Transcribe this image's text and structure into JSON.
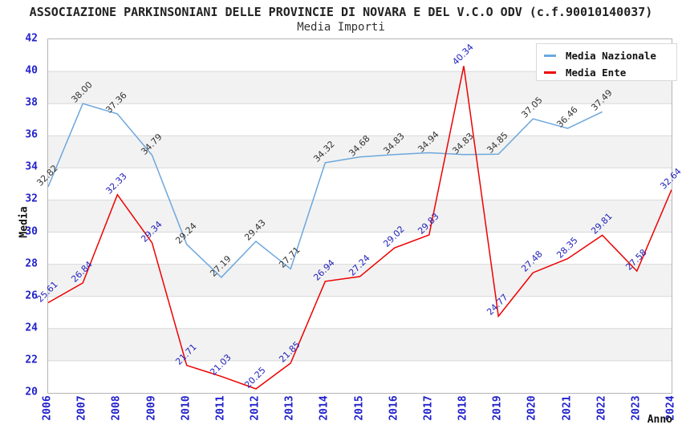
{
  "chart_data": {
    "type": "line",
    "title": "ASSOCIAZIONE PARKINSONIANI DELLE PROVINCIE DI NOVARA E DEL V.C.O ODV (c.f.90010140037)",
    "subtitle": "Media Importi",
    "xlabel": "Anno",
    "ylabel": "Media",
    "x": [
      2006,
      2007,
      2008,
      2009,
      2010,
      2011,
      2012,
      2013,
      2014,
      2015,
      2016,
      2017,
      2018,
      2019,
      2020,
      2021,
      2022,
      2023,
      2024
    ],
    "ylim": [
      20,
      42
    ],
    "y_tick_step": 2,
    "tick_color": "#2222CC",
    "grid": "horizontal gridlines every 2 units with alternating white/gray bands",
    "legend_position": "top-right",
    "band_color": "#f2f2f2",
    "series": [
      {
        "name": "Media Nazionale",
        "color": "#6DA7DC",
        "label_color": "#333333",
        "values": [
          32.82,
          38.0,
          37.36,
          34.79,
          29.24,
          27.19,
          29.43,
          27.71,
          34.32,
          34.68,
          34.83,
          34.94,
          34.83,
          34.85,
          37.05,
          36.46,
          37.49,
          null,
          null
        ]
      },
      {
        "name": "Media Ente",
        "color": "#EE0000",
        "label_color": "#2222BB",
        "values": [
          25.61,
          26.84,
          32.33,
          29.34,
          21.71,
          21.03,
          20.25,
          21.85,
          26.94,
          27.24,
          29.02,
          29.83,
          40.34,
          24.77,
          27.48,
          28.35,
          29.81,
          27.58,
          32.64
        ]
      }
    ]
  }
}
